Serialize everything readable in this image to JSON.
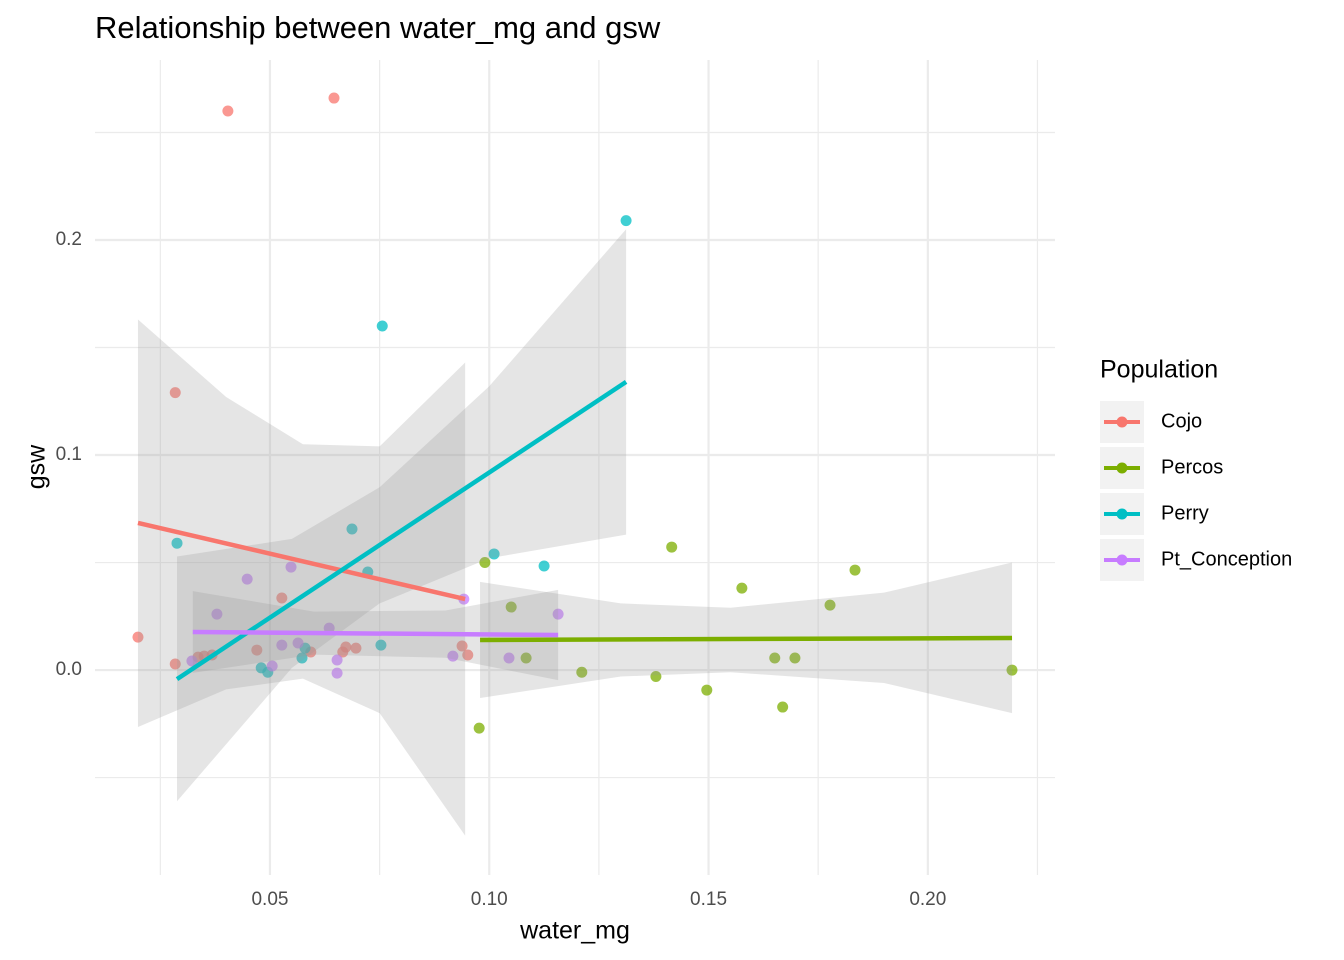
{
  "chart_data": {
    "type": "scatter",
    "title": "Relationship between water_mg and gsw",
    "x_label": "water_mg",
    "y_label": "gsw",
    "legend_title": "Population",
    "legend_position": "right",
    "grid": true,
    "xlim": [
      0.0101,
      0.229
    ],
    "ylim": [
      -0.0953,
      0.2837
    ],
    "xticks": [
      0.05,
      {
        "value": 0.1,
        "label": "0.10"
      },
      0.15,
      {
        "value": 0.2,
        "label": "0.20"
      }
    ],
    "yticks": [
      {
        "value": 0,
        "label": "0.0"
      },
      0.1,
      0.2
    ],
    "series": [
      {
        "name": "Cojo",
        "color": "#F8766D",
        "x": [
          0.0199,
          0.0284,
          0.0284,
          0.0404,
          0.0646,
          0.0336,
          0.035,
          0.0368,
          0.047,
          0.0527,
          0.0593,
          0.0666,
          0.0673,
          0.0696,
          0.0938,
          0.0951
        ],
        "values": [
          0.0153,
          0.129,
          0.0028,
          0.26,
          0.266,
          0.006,
          0.0065,
          0.007,
          0.0093,
          0.0335,
          0.0084,
          0.0084,
          0.0107,
          0.0102,
          0.0112,
          0.007
        ],
        "fit": {
          "x": [
            0.0199,
            0.0945
          ],
          "values": [
            0.0684,
            0.033
          ]
        },
        "band": {
          "x": [
            0.0199,
            0.04,
            0.0575,
            0.075,
            0.0945
          ],
          "upper": [
            0.163,
            0.127,
            0.105,
            0.104,
            0.143
          ],
          "lower": [
            -0.0265,
            -0.009,
            -0.004,
            -0.02,
            -0.077
          ]
        }
      },
      {
        "name": "Percos",
        "color": "#7CAE00",
        "x": [
          0.0977,
          0.099,
          0.105,
          0.1084,
          0.1211,
          0.138,
          0.1416,
          0.1496,
          0.1576,
          0.1651,
          0.1669,
          0.1697,
          0.1777,
          0.1834,
          0.2192
        ],
        "values": [
          -0.027,
          0.05,
          0.0293,
          0.0056,
          -0.001,
          -0.003,
          0.0572,
          -0.0093,
          0.0381,
          0.0056,
          -0.0172,
          0.0056,
          0.0302,
          0.0465,
          0
        ],
        "fit": {
          "x": [
            0.0979,
            0.2192
          ],
          "values": [
            0.014,
            0.0149
          ]
        },
        "band": {
          "x": [
            0.0979,
            0.13,
            0.155,
            0.19,
            0.2192
          ],
          "upper": [
            0.041,
            0.031,
            0.029,
            0.036,
            0.05
          ],
          "lower": [
            -0.013,
            -0.003,
            -0.001,
            -0.006,
            -0.02
          ]
        }
      },
      {
        "name": "Perry",
        "color": "#00BFC4",
        "x": [
          0.0288,
          0.0756,
          0.1312,
          0.0687,
          0.0723,
          0.0753,
          0.048,
          0.0495,
          0.0573,
          0.058,
          0.1011,
          0.1125
        ],
        "values": [
          0.059,
          0.16,
          0.209,
          0.0656,
          0.0456,
          0.0116,
          0.001,
          -0.001,
          0.0056,
          0.0102,
          0.054,
          0.0484
        ],
        "fit": {
          "x": [
            0.0288,
            0.1312
          ],
          "values": [
            -0.0042,
            0.134
          ]
        },
        "band": {
          "x": [
            0.0288,
            0.055,
            0.075,
            0.1,
            0.1312
          ],
          "upper": [
            0.0528,
            0.061,
            0.085,
            0.132,
            0.205
          ],
          "lower": [
            -0.061,
            0.001,
            0.031,
            0.052,
            0.063
          ]
        }
      },
      {
        "name": "Pt_Conception",
        "color": "#C77CFF",
        "x": [
          0.0322,
          0.0448,
          0.0379,
          0.0548,
          0.0527,
          0.0564,
          0.0635,
          0.0505,
          0.0653,
          0.0653,
          0.0917,
          0.0942,
          0.1045,
          0.1157
        ],
        "values": [
          0.0042,
          0.0423,
          0.026,
          0.0479,
          0.0116,
          0.0126,
          0.0195,
          0.0019,
          0.0047,
          -0.0014,
          0.0065,
          0.033,
          0.0056,
          0.026
        ],
        "fit": {
          "x": [
            0.0324,
            0.1157
          ],
          "values": [
            0.0177,
            0.0163
          ]
        },
        "band": {
          "x": [
            0.0324,
            0.06,
            0.09,
            0.1157
          ],
          "upper": [
            0.0367,
            0.0272,
            0.0277,
            0.0373
          ],
          "lower": [
            -0.0013,
            0.0072,
            0.0057,
            -0.0047
          ]
        }
      }
    ]
  }
}
